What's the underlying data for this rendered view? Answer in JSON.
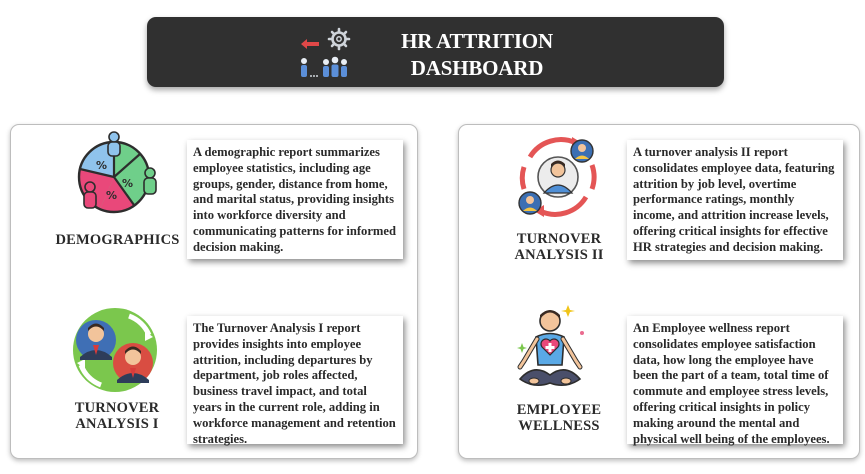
{
  "header": {
    "title": "HR ATTRITION DASHBOARD",
    "icon": "hr-team-gear-icon"
  },
  "sections": {
    "demographics": {
      "label": "DEMOGRAPHICS",
      "icon": "demographics-pie-people-icon",
      "description": "A demographic report summarizes employee statistics, including age groups, gender, distance from home, and marital status, providing insights into workforce diversity and communicating patterns for informed decision making."
    },
    "turnover1": {
      "label": "TURNOVER ANALYSIS I",
      "icon": "people-exchange-icon",
      "description": "The Turnover Analysis I report provides insights into employee attrition, including departures by department, job roles affected, business travel impact, and total years in the current role, adding in workforce management and retention strategies."
    },
    "turnover2": {
      "label": "TURNOVER ANALYSIS II",
      "icon": "people-cycle-icon",
      "description": "A turnover analysis II report consolidates employee data, featuring attrition by job level, overtime performance ratings, monthly income, and attrition increase levels, offering critical insights for effective HR strategies and decision making."
    },
    "wellness": {
      "label": "EMPLOYEE WELLNESS",
      "icon": "meditation-wellness-icon",
      "description": "An Employee wellness report consolidates employee satisfaction data, how long the employee have been the part of a team, total time of commute and employee stress levels, offering critical insights in policy making around the mental and physical well being of the employees."
    }
  }
}
